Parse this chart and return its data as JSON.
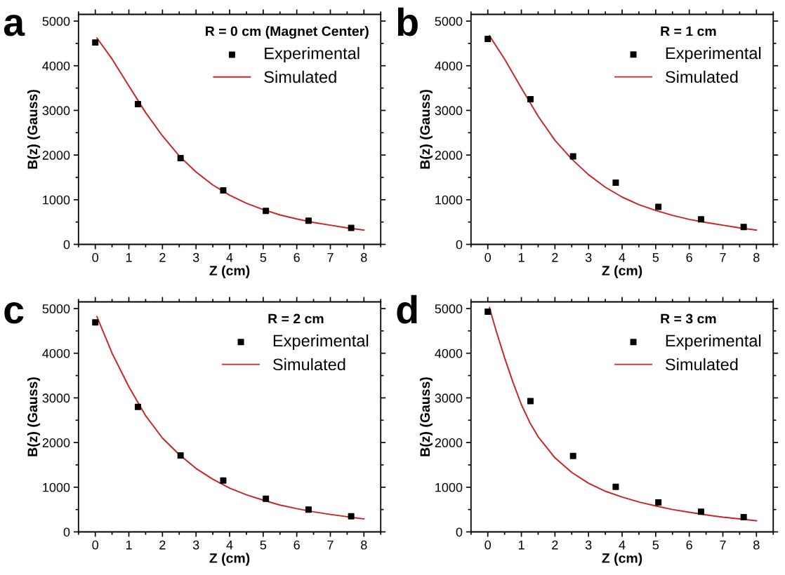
{
  "chart_data": [
    {
      "type": "scatter",
      "annotations": [
        "a"
      ],
      "legend_title": "R = 0 cm (Magnet Center)",
      "xlabel": "Z (cm)",
      "ylabel": "B(z) (Gauss)",
      "xlim": [
        -0.5,
        8.5
      ],
      "ylim": [
        0,
        5150
      ],
      "xticks": [
        0,
        1,
        2,
        3,
        4,
        5,
        6,
        7,
        8
      ],
      "yticks": [
        0,
        1000,
        2000,
        3000,
        4000,
        5000
      ],
      "legend": "top right",
      "grid": false,
      "series": [
        {
          "name": "Experimental",
          "marker": "square",
          "color": "#000000",
          "x": [
            0,
            1.27,
            2.54,
            3.81,
            5.08,
            6.35,
            7.62
          ],
          "values": [
            4520,
            3140,
            1930,
            1210,
            750,
            530,
            370
          ]
        },
        {
          "name": "Simulated",
          "type": "line",
          "marker": "none",
          "color": "#cc2222",
          "x": [
            0.05,
            0.5,
            1,
            1.5,
            2,
            2.5,
            3,
            3.5,
            4,
            4.5,
            5,
            5.5,
            6,
            6.5,
            7,
            7.5,
            8
          ],
          "values": [
            4620,
            4150,
            3550,
            2950,
            2430,
            1980,
            1620,
            1330,
            1100,
            920,
            780,
            660,
            570,
            490,
            430,
            370,
            320
          ]
        }
      ]
    },
    {
      "type": "scatter",
      "annotations": [
        "b"
      ],
      "legend_title": "R = 1 cm",
      "xlabel": "Z (cm)",
      "ylabel": "B(z) (Gauss)",
      "xlim": [
        -0.5,
        8.5
      ],
      "ylim": [
        0,
        5150
      ],
      "xticks": [
        0,
        1,
        2,
        3,
        4,
        5,
        6,
        7,
        8
      ],
      "yticks": [
        0,
        1000,
        2000,
        3000,
        4000,
        5000
      ],
      "legend": "top right",
      "grid": false,
      "series": [
        {
          "name": "Experimental",
          "marker": "square",
          "color": "#000000",
          "x": [
            0,
            1.27,
            2.54,
            3.81,
            5.08,
            6.35,
            7.62
          ],
          "values": [
            4600,
            3250,
            1970,
            1380,
            840,
            560,
            390
          ]
        },
        {
          "name": "Simulated",
          "type": "line",
          "marker": "none",
          "color": "#cc2222",
          "x": [
            0.05,
            0.5,
            1,
            1.5,
            2,
            2.5,
            3,
            3.5,
            4,
            4.5,
            5,
            5.5,
            6,
            6.5,
            7,
            7.5,
            8
          ],
          "values": [
            4670,
            4150,
            3500,
            2870,
            2330,
            1910,
            1560,
            1280,
            1060,
            890,
            760,
            650,
            560,
            490,
            430,
            370,
            320
          ]
        }
      ]
    },
    {
      "type": "scatter",
      "annotations": [
        "c"
      ],
      "legend_title": "R = 2 cm",
      "xlabel": "Z (cm)",
      "ylabel": "B(z) (Gauss)",
      "xlim": [
        -0.5,
        8.5
      ],
      "ylim": [
        0,
        5150
      ],
      "xticks": [
        0,
        1,
        2,
        3,
        4,
        5,
        6,
        7,
        8
      ],
      "yticks": [
        0,
        1000,
        2000,
        3000,
        4000,
        5000
      ],
      "legend": "top right",
      "grid": false,
      "series": [
        {
          "name": "Experimental",
          "marker": "square",
          "color": "#000000",
          "x": [
            0,
            1.27,
            2.54,
            3.81,
            5.08,
            6.35,
            7.62
          ],
          "values": [
            4690,
            2800,
            1710,
            1150,
            740,
            500,
            350
          ]
        },
        {
          "name": "Simulated",
          "type": "line",
          "marker": "none",
          "color": "#cc2222",
          "x": [
            0.05,
            0.5,
            1,
            1.5,
            2,
            2.5,
            3,
            3.5,
            4,
            4.5,
            5,
            5.5,
            6,
            6.5,
            7,
            7.5,
            8
          ],
          "values": [
            4820,
            4000,
            3250,
            2600,
            2100,
            1730,
            1420,
            1180,
            980,
            830,
            710,
            600,
            520,
            450,
            390,
            340,
            290
          ]
        }
      ]
    },
    {
      "type": "scatter",
      "annotations": [
        "d"
      ],
      "legend_title": "R = 3 cm",
      "xlabel": "Z (cm)",
      "ylabel": "B(z) (Gauss)",
      "xlim": [
        -0.5,
        8.5
      ],
      "ylim": [
        0,
        5150
      ],
      "xticks": [
        0,
        1,
        2,
        3,
        4,
        5,
        6,
        7,
        8
      ],
      "yticks": [
        0,
        1000,
        2000,
        3000,
        4000,
        5000
      ],
      "legend": "top right",
      "grid": false,
      "series": [
        {
          "name": "Experimental",
          "marker": "square",
          "color": "#000000",
          "x": [
            0,
            1.27,
            2.54,
            3.81,
            5.08,
            6.35,
            7.62
          ],
          "values": [
            4930,
            2930,
            1700,
            1010,
            660,
            450,
            330
          ]
        },
        {
          "name": "Simulated",
          "type": "line",
          "marker": "none",
          "color": "#cc2222",
          "x": [
            0.05,
            0.25,
            0.5,
            0.75,
            1,
            1.25,
            1.5,
            2,
            2.5,
            3,
            3.5,
            4,
            4.5,
            5,
            5.5,
            6,
            6.5,
            7,
            7.5,
            8
          ],
          "values": [
            5020,
            4500,
            3900,
            3350,
            2850,
            2450,
            2130,
            1660,
            1330,
            1090,
            910,
            780,
            670,
            580,
            500,
            440,
            380,
            330,
            290,
            250
          ]
        }
      ]
    }
  ]
}
